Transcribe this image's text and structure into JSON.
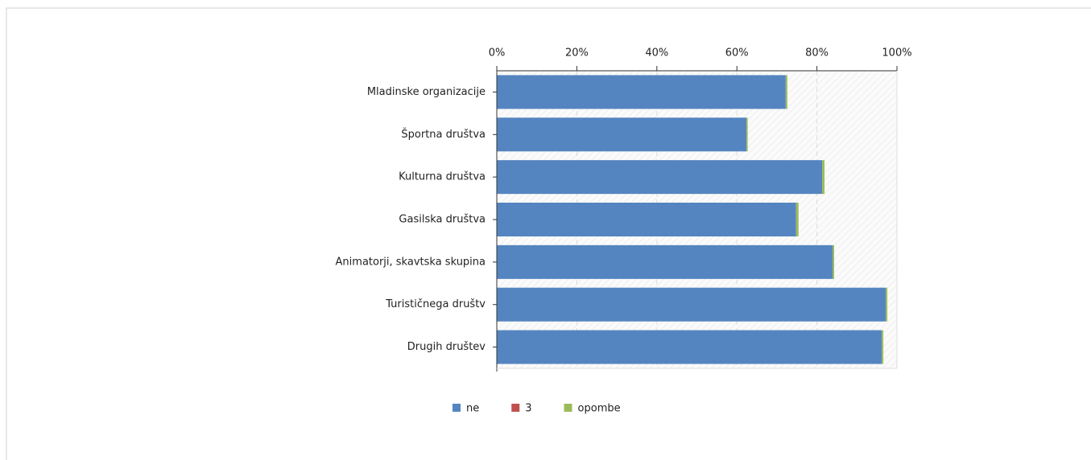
{
  "chart_data": {
    "type": "stacked_bar_horizontal",
    "categories": [
      "Mladinske organizacije",
      "Športna društva",
      "Kulturna društva",
      "Gasilska društva",
      "Animatorji, skavtska skupina",
      "Turističnega društv",
      "Drugih društev"
    ],
    "series": [
      {
        "name": "ne",
        "color": "#5585c0",
        "values": [
          72.2,
          62.4,
          81.3,
          74.8,
          83.9,
          97.2,
          96.2
        ]
      },
      {
        "name": "3",
        "color": "#c0504d",
        "values": [
          0,
          0,
          0,
          0,
          0,
          0,
          0
        ]
      },
      {
        "name": "opombe",
        "color": "#9bbb59",
        "values": [
          0.4,
          0.3,
          0.6,
          0.6,
          0.4,
          0.4,
          0.4
        ]
      }
    ],
    "xlim": [
      0,
      100
    ],
    "xticks": [
      {
        "value": 0,
        "label": "0%"
      },
      {
        "value": 20,
        "label": "20%"
      },
      {
        "value": 40,
        "label": "40%"
      },
      {
        "value": 60,
        "label": "60%"
      },
      {
        "value": 80,
        "label": "80%"
      },
      {
        "value": 100,
        "label": "100%"
      }
    ],
    "grid": true,
    "legend": "bottom"
  }
}
